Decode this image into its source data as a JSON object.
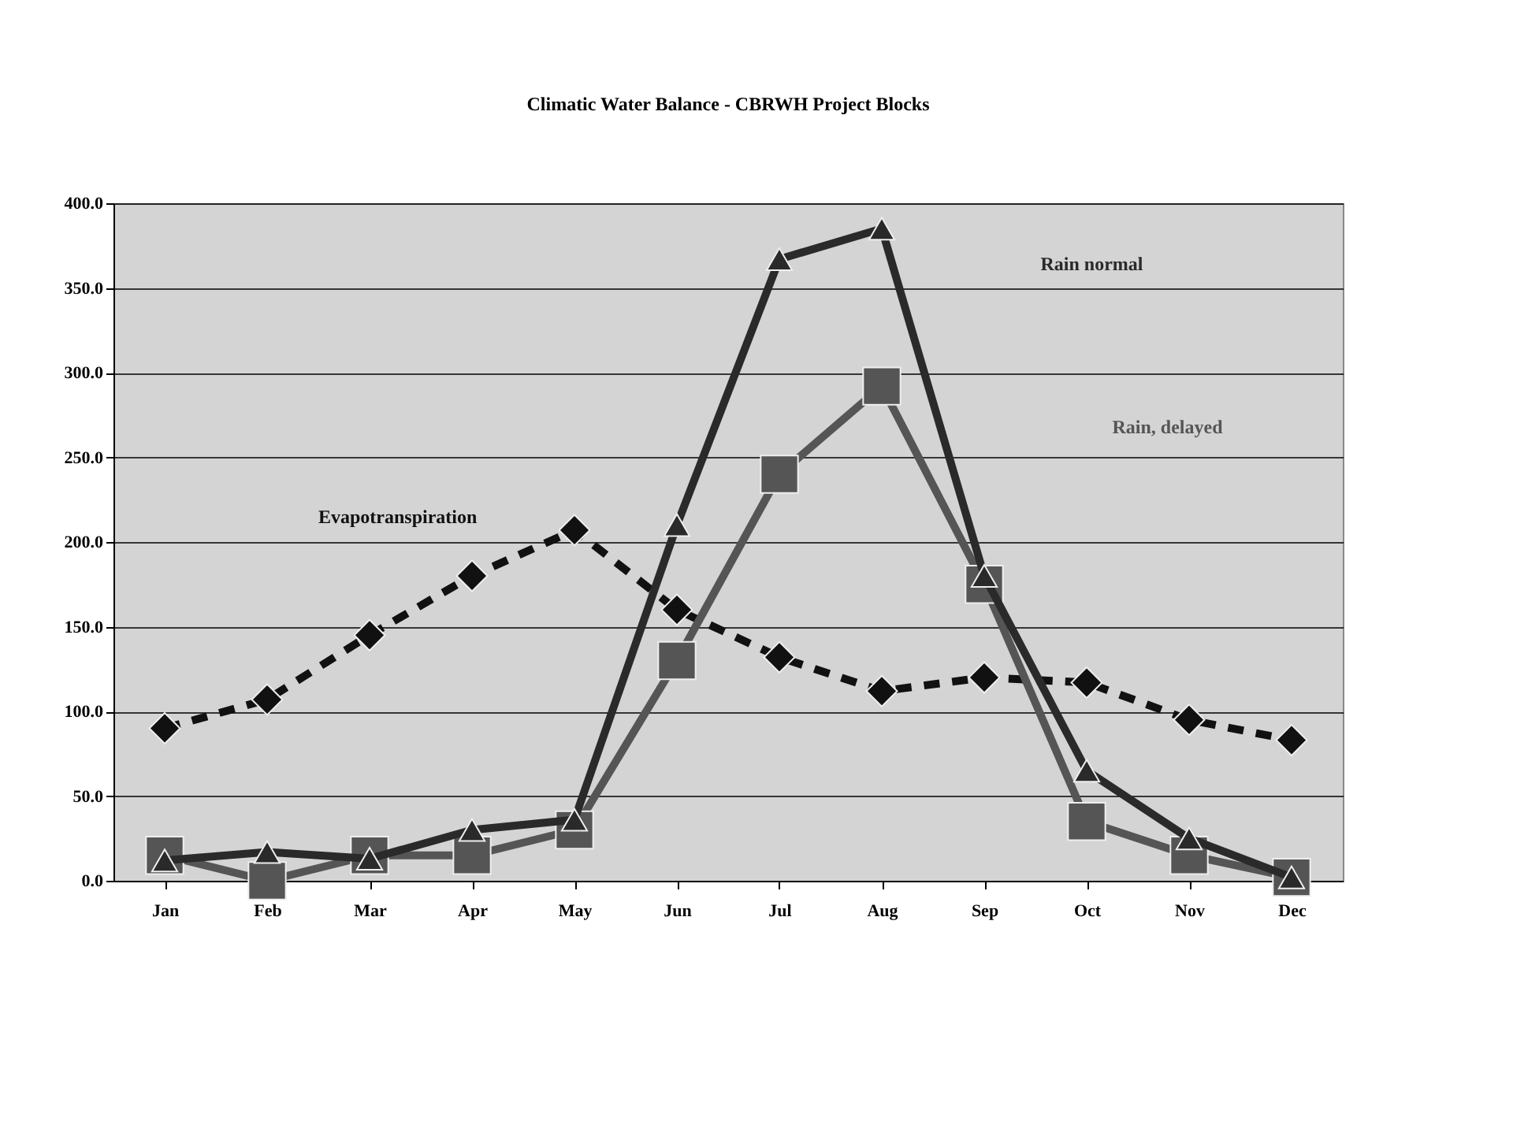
{
  "chart_data": {
    "type": "line",
    "title": "Climatic Water Balance - CBRWH Project Blocks",
    "categories": [
      "Jan",
      "Feb",
      "Mar",
      "Apr",
      "May",
      "Jun",
      "Jul",
      "Aug",
      "Sep",
      "Oct",
      "Nov",
      "Dec"
    ],
    "series": [
      {
        "name": "Evapotranspiration",
        "color": "#111111",
        "line_style": "dashed",
        "marker": "diamond",
        "values": [
          90,
          107,
          145,
          180,
          207,
          160,
          132,
          112,
          120,
          117,
          95,
          83
        ]
      },
      {
        "name": "Rain, delayed",
        "color": "#555555",
        "line_style": "solid",
        "marker": "square",
        "values": [
          15,
          0,
          15,
          15,
          30,
          130,
          240,
          292,
          175,
          35,
          15,
          2
        ]
      },
      {
        "name": "Rain normal",
        "color": "#2a2a2a",
        "line_style": "solid",
        "marker": "triangle",
        "values": [
          12,
          17,
          13,
          30,
          36,
          210,
          367,
          385,
          180,
          65,
          25,
          2
        ]
      }
    ],
    "ylim": [
      0,
      400
    ],
    "yticks": [
      {
        "value": 0,
        "label": "0.0"
      },
      {
        "value": 50,
        "label": "50.0"
      },
      {
        "value": 100,
        "label": "100.0"
      },
      {
        "value": 150,
        "label": "150.0"
      },
      {
        "value": 200,
        "label": "200.0"
      },
      {
        "value": 250,
        "label": "250.0"
      },
      {
        "value": 300,
        "label": "300.0"
      },
      {
        "value": 350,
        "label": "350.0"
      },
      {
        "value": 400,
        "label": "400.0"
      }
    ],
    "grid": "y",
    "legend": false
  }
}
